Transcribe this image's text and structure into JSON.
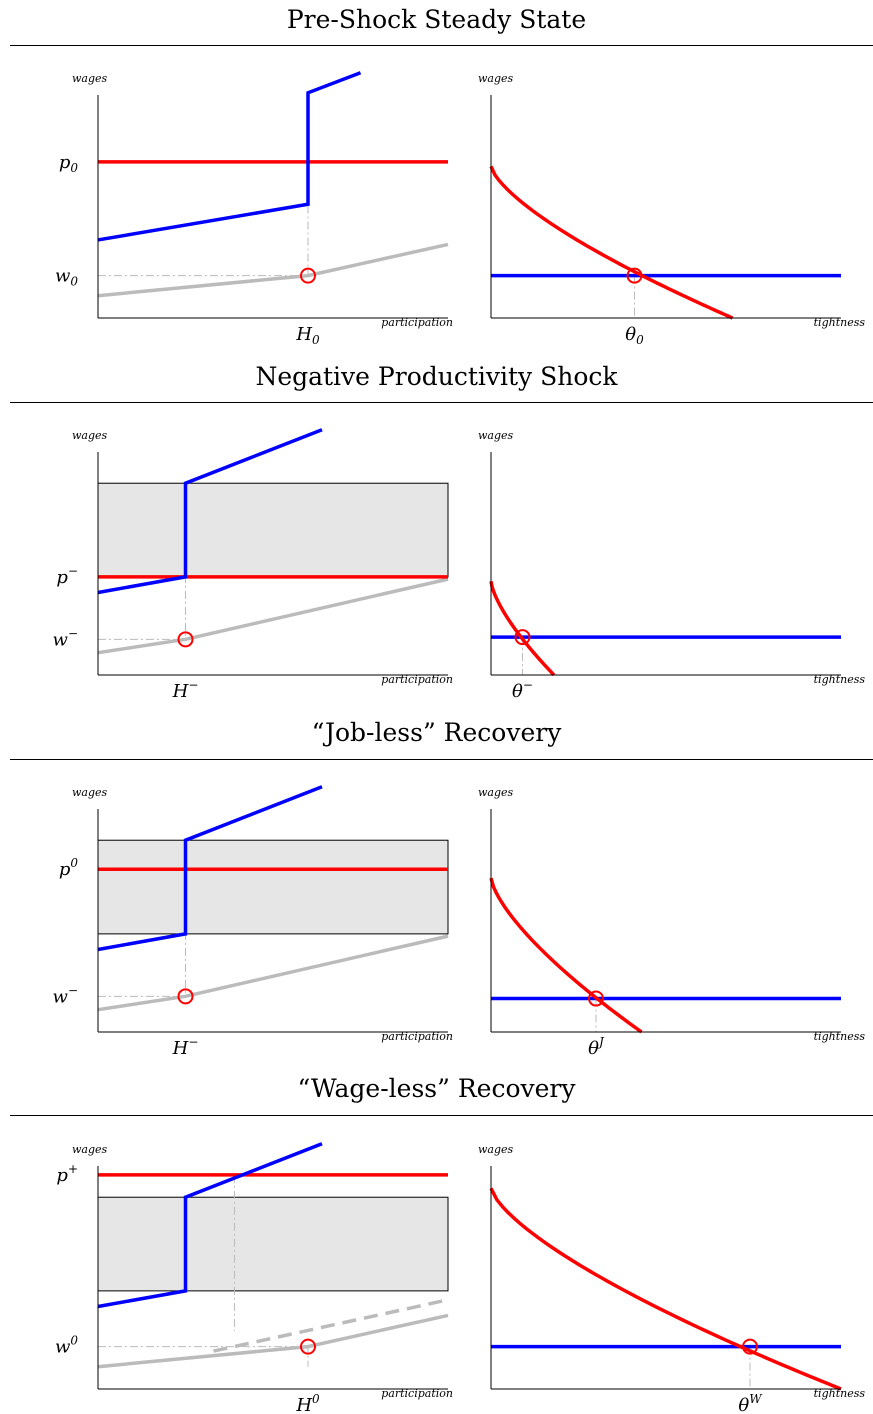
{
  "chart_data": [
    {
      "type": "line",
      "title": "Pre-Shock Steady State",
      "left": {
        "ylabel": "wages",
        "xlabel": "participation",
        "y_tick": {
          "base": "p",
          "sub": "0",
          "sup": ""
        },
        "y_tick2": {
          "base": "w",
          "sub": "0",
          "sup": ""
        },
        "x_tick": {
          "base": "H",
          "sub": "0",
          "sup": ""
        },
        "band": null,
        "series": [
          {
            "name": "",
            "color": "#ff0000",
            "points": [
              [
                0,
                0.7
              ],
              [
                1,
                0.7
              ]
            ]
          },
          {
            "name": "",
            "color": "#0000ff",
            "points": [
              [
                0,
                0.35
              ],
              [
                0.6,
                0.51
              ],
              [
                0.6,
                1.01
              ],
              [
                0.75,
                1.1
              ]
            ]
          },
          {
            "name": "",
            "color": "#bbbbbb",
            "points": [
              [
                0,
                0.1
              ],
              [
                0.6,
                0.19
              ],
              [
                1,
                0.33
              ]
            ]
          }
        ],
        "dashed_series": [],
        "marker": [
          0.6,
          0.19
        ],
        "guide": [
          [
            0,
            0.19
          ],
          [
            0.6,
            0.19
          ],
          [
            0.6,
            0.51
          ]
        ],
        "extra_guide": null
      },
      "right": {
        "ylabel": "wages",
        "xlabel": "tightness",
        "x_tick": {
          "base": "θ",
          "sub": "0",
          "sup": ""
        },
        "blue_level": 0.19,
        "red_curve": {
          "top": 0.68,
          "end_x": 0.69
        },
        "marker_x": 0.41
      }
    },
    {
      "type": "line",
      "title": "Negative Productivity Shock",
      "left": {
        "ylabel": "wages",
        "xlabel": "participation",
        "y_tick": {
          "base": "p",
          "sub": "",
          "sup": "−"
        },
        "y_tick2": {
          "base": "w",
          "sub": "",
          "sup": "−"
        },
        "x_tick": {
          "base": "H",
          "sub": "",
          "sup": "−"
        },
        "band": [
          0.44,
          0.86
        ],
        "series": [
          {
            "name": "",
            "color": "#ff0000",
            "points": [
              [
                0,
                0.44
              ],
              [
                1,
                0.44
              ]
            ]
          },
          {
            "name": "",
            "color": "#0000ff",
            "points": [
              [
                0,
                0.37
              ],
              [
                0.25,
                0.44
              ],
              [
                0.25,
                0.86
              ],
              [
                0.64,
                1.1
              ]
            ]
          },
          {
            "name": "",
            "color": "#bbbbbb",
            "points": [
              [
                0,
                0.1
              ],
              [
                0.25,
                0.16
              ],
              [
                1,
                0.43
              ]
            ]
          }
        ],
        "dashed_series": [],
        "marker": [
          0.25,
          0.16
        ],
        "guide": [
          [
            0,
            0.16
          ],
          [
            0.25,
            0.16
          ],
          [
            0.25,
            0.44
          ]
        ],
        "extra_guide": null
      },
      "right": {
        "ylabel": "wages",
        "xlabel": "tightness",
        "x_tick": {
          "base": "θ",
          "sub": "",
          "sup": "−"
        },
        "blue_level": 0.17,
        "red_curve": {
          "top": 0.42,
          "end_x": 0.18
        },
        "marker_x": 0.09
      }
    },
    {
      "type": "line",
      "title": "“Job-less” Recovery",
      "left": {
        "ylabel": "wages",
        "xlabel": "participation",
        "y_tick": {
          "base": "p",
          "sub": "",
          "sup": "0"
        },
        "y_tick2": {
          "base": "w",
          "sub": "",
          "sup": "−"
        },
        "x_tick": {
          "base": "H",
          "sub": "",
          "sup": "−"
        },
        "band": [
          0.44,
          0.86
        ],
        "series": [
          {
            "name": "",
            "color": "#ff0000",
            "points": [
              [
                0,
                0.73
              ],
              [
                1,
                0.73
              ]
            ]
          },
          {
            "name": "",
            "color": "#0000ff",
            "points": [
              [
                0,
                0.37
              ],
              [
                0.25,
                0.44
              ],
              [
                0.25,
                0.86
              ],
              [
                0.64,
                1.1
              ]
            ]
          },
          {
            "name": "",
            "color": "#bbbbbb",
            "points": [
              [
                0,
                0.1
              ],
              [
                0.25,
                0.16
              ],
              [
                1,
                0.43
              ]
            ]
          }
        ],
        "dashed_series": [],
        "marker": [
          0.25,
          0.16
        ],
        "guide": [
          [
            0,
            0.16
          ],
          [
            0.25,
            0.16
          ],
          [
            0.25,
            0.44
          ]
        ],
        "extra_guide": null
      },
      "right": {
        "ylabel": "wages",
        "xlabel": "tightness",
        "x_tick": {
          "base": "θ",
          "sub": "",
          "sup": "J"
        },
        "blue_level": 0.15,
        "red_curve": {
          "top": 0.69,
          "end_x": 0.43
        },
        "marker_x": 0.3
      }
    },
    {
      "type": "line",
      "title": "“Wage-less” Recovery",
      "left": {
        "ylabel": "wages",
        "xlabel": "participation",
        "y_tick": {
          "base": "p",
          "sub": "",
          "sup": "+"
        },
        "y_tick2": {
          "base": "w",
          "sub": "",
          "sup": "0"
        },
        "x_tick": {
          "base": "H",
          "sub": "",
          "sup": "0"
        },
        "band": [
          0.44,
          0.86
        ],
        "series": [
          {
            "name": "",
            "color": "#ff0000",
            "points": [
              [
                0,
                0.96
              ],
              [
                1,
                0.96
              ]
            ]
          },
          {
            "name": "",
            "color": "#0000ff",
            "points": [
              [
                0,
                0.37
              ],
              [
                0.25,
                0.44
              ],
              [
                0.25,
                0.86
              ],
              [
                0.64,
                1.1
              ]
            ]
          },
          {
            "name": "",
            "color": "#bbbbbb",
            "points": [
              [
                0,
                0.1
              ],
              [
                0.6,
                0.19
              ],
              [
                1,
                0.33
              ]
            ]
          }
        ],
        "dashed_series": [
          {
            "name": "",
            "color": "#bbbbbb",
            "points": [
              [
                0.33,
                0.17
              ],
              [
                1,
                0.4
              ]
            ]
          }
        ],
        "marker": [
          0.6,
          0.19
        ],
        "guide": [
          [
            0,
            0.19
          ],
          [
            0.6,
            0.19
          ],
          [
            0.6,
            0.1
          ]
        ],
        "extra_guide": [
          [
            0.39,
            0.96
          ],
          [
            0.39,
            0.26
          ]
        ]
      },
      "right": {
        "ylabel": "wages",
        "xlabel": "tightness",
        "x_tick": {
          "base": "θ",
          "sub": "",
          "sup": "W"
        },
        "blue_level": 0.19,
        "red_curve": {
          "top": 0.9,
          "end_x": 1.0
        },
        "marker_x": 0.74
      }
    }
  ]
}
